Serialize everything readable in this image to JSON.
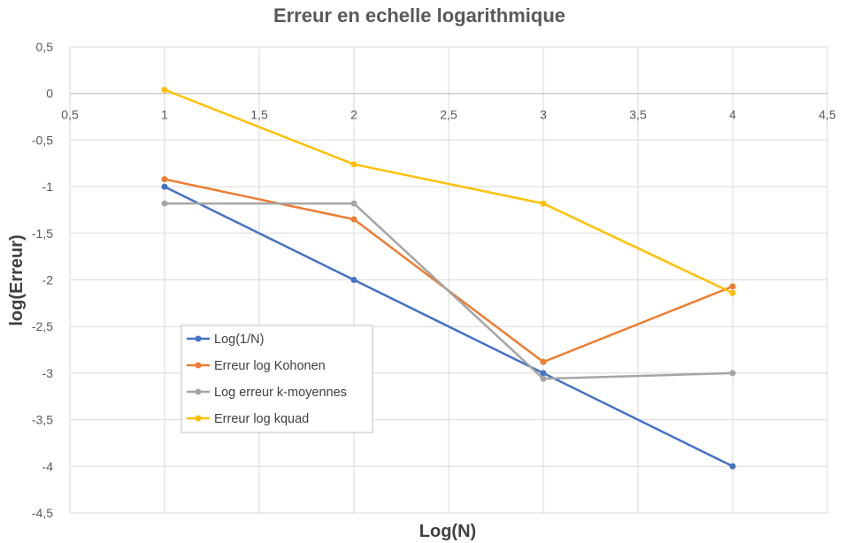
{
  "chart_data": {
    "type": "line",
    "title": "Erreur en echelle logarithmique",
    "xlabel": "Log(N)",
    "ylabel": "log(Erreur)",
    "xlim": [
      0.5,
      4.5
    ],
    "ylim": [
      -4.5,
      0.5
    ],
    "x_ticks": [
      "0,5",
      "1",
      "1,5",
      "2",
      "2,5",
      "3",
      "3,5",
      "4",
      "4,5"
    ],
    "y_ticks": [
      "0,5",
      "0",
      "-0,5",
      "-1",
      "-1,5",
      "-2",
      "-2,5",
      "-3",
      "-3,5",
      "-4",
      "-4,5"
    ],
    "grid": true,
    "legend_position": "bottom-left",
    "series": [
      {
        "name": "Log(1/N)",
        "color": "#4472C4",
        "x": [
          1,
          2,
          3,
          4
        ],
        "y": [
          -1,
          -2,
          -3,
          -4
        ]
      },
      {
        "name": "Erreur log Kohonen",
        "color": "#ED7D31",
        "x": [
          1,
          2,
          3,
          4
        ],
        "y": [
          -0.92,
          -1.35,
          -2.88,
          -2.07
        ]
      },
      {
        "name": "Log erreur k-moyennes",
        "color": "#A5A5A5",
        "x": [
          1,
          2,
          3,
          4
        ],
        "y": [
          -1.18,
          -1.18,
          -3.06,
          -3.0
        ]
      },
      {
        "name": "Erreur log kquad",
        "color": "#FFC000",
        "x": [
          1,
          2,
          3,
          4
        ],
        "y": [
          0.04,
          -0.76,
          -1.18,
          -2.14
        ]
      }
    ]
  }
}
